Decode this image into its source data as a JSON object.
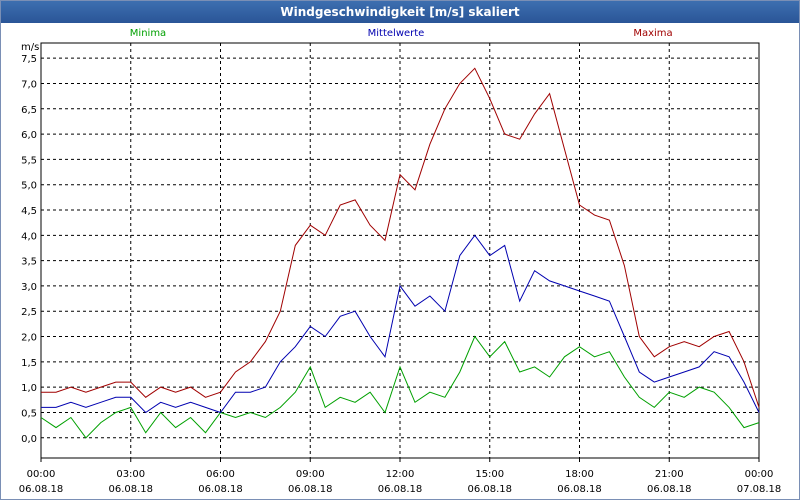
{
  "window": {
    "title": "Windgeschwindigkeit [m/s] skaliert"
  },
  "colors": {
    "min": "#00a000",
    "mean": "#0000b0",
    "max": "#a00000",
    "grid": "#000000"
  },
  "chart_data": {
    "type": "line",
    "title": "Windgeschwindigkeit [m/s] skaliert",
    "ylabel": "m/s",
    "ylim": [
      -0.4,
      7.8
    ],
    "yticks": [
      0.0,
      0.5,
      1.0,
      1.5,
      2.0,
      2.5,
      3.0,
      3.5,
      4.0,
      4.5,
      5.0,
      5.5,
      6.0,
      6.5,
      7.0,
      7.5
    ],
    "ytick_labels": [
      "0,0",
      "0,5",
      "1,0",
      "1,5",
      "2,0",
      "2,5",
      "3,0",
      "3,5",
      "4,0",
      "4,5",
      "5,0",
      "5,5",
      "6,0",
      "6,5",
      "7,0",
      "7,5"
    ],
    "xlim": [
      "06.08.18 00:00",
      "07.08.18 00:00"
    ],
    "xtick_labels": [
      {
        "time": "00:00",
        "date": "06.08.18"
      },
      {
        "time": "03:00",
        "date": "06.08.18"
      },
      {
        "time": "06:00",
        "date": "06.08.18"
      },
      {
        "time": "09:00",
        "date": "06.08.18"
      },
      {
        "time": "12:00",
        "date": "06.08.18"
      },
      {
        "time": "15:00",
        "date": "06.08.18"
      },
      {
        "time": "18:00",
        "date": "06.08.18"
      },
      {
        "time": "21:00",
        "date": "06.08.18"
      },
      {
        "time": "00:00",
        "date": "07.08.18"
      }
    ],
    "grid": true,
    "x": [
      "06.08.18 00:00",
      "06.08.18 00:30",
      "06.08.18 01:00",
      "06.08.18 01:30",
      "06.08.18 02:00",
      "06.08.18 02:30",
      "06.08.18 03:00",
      "06.08.18 03:30",
      "06.08.18 04:00",
      "06.08.18 04:30",
      "06.08.18 05:00",
      "06.08.18 05:30",
      "06.08.18 06:00",
      "06.08.18 06:30",
      "06.08.18 07:00",
      "06.08.18 07:30",
      "06.08.18 08:00",
      "06.08.18 08:30",
      "06.08.18 09:00",
      "06.08.18 09:30",
      "06.08.18 10:00",
      "06.08.18 10:30",
      "06.08.18 11:00",
      "06.08.18 11:30",
      "06.08.18 12:00",
      "06.08.18 12:30",
      "06.08.18 13:00",
      "06.08.18 13:30",
      "06.08.18 14:00",
      "06.08.18 14:30",
      "06.08.18 15:00",
      "06.08.18 15:30",
      "06.08.18 16:00",
      "06.08.18 16:30",
      "06.08.18 17:00",
      "06.08.18 17:30",
      "06.08.18 18:00",
      "06.08.18 18:30",
      "06.08.18 19:00",
      "06.08.18 19:30",
      "06.08.18 20:00",
      "06.08.18 20:30",
      "06.08.18 21:00",
      "06.08.18 21:30",
      "06.08.18 22:00",
      "06.08.18 22:30",
      "06.08.18 23:00",
      "06.08.18 23:30",
      "07.08.18 00:00"
    ],
    "series": [
      {
        "name": "Minima",
        "key": "min",
        "values": [
          0.4,
          0.2,
          0.4,
          0.0,
          0.3,
          0.5,
          0.6,
          0.1,
          0.5,
          0.2,
          0.4,
          0.1,
          0.5,
          0.4,
          0.5,
          0.4,
          0.6,
          0.9,
          1.4,
          0.6,
          0.8,
          0.7,
          0.9,
          0.5,
          1.4,
          0.7,
          0.9,
          0.8,
          1.3,
          2.0,
          1.6,
          1.9,
          1.3,
          1.4,
          1.2,
          1.6,
          1.8,
          1.6,
          1.7,
          1.2,
          0.8,
          0.6,
          0.9,
          0.8,
          1.0,
          0.9,
          0.6,
          0.2,
          0.3
        ]
      },
      {
        "name": "Mittelwerte",
        "key": "mean",
        "values": [
          0.6,
          0.6,
          0.7,
          0.6,
          0.7,
          0.8,
          0.8,
          0.5,
          0.7,
          0.6,
          0.7,
          0.6,
          0.5,
          0.9,
          0.9,
          1.0,
          1.5,
          1.8,
          2.2,
          2.0,
          2.4,
          2.5,
          2.0,
          1.6,
          3.0,
          2.6,
          2.8,
          2.5,
          3.6,
          4.0,
          3.6,
          3.8,
          2.7,
          3.3,
          3.1,
          3.0,
          2.9,
          2.8,
          2.7,
          2.0,
          1.3,
          1.1,
          1.2,
          1.3,
          1.4,
          1.7,
          1.6,
          1.1,
          0.5
        ]
      },
      {
        "name": "Maxima",
        "key": "max",
        "values": [
          0.9,
          0.9,
          1.0,
          0.9,
          1.0,
          1.1,
          1.1,
          0.8,
          1.0,
          0.9,
          1.0,
          0.8,
          0.9,
          1.3,
          1.5,
          1.9,
          2.5,
          3.8,
          4.2,
          4.0,
          4.6,
          4.7,
          4.2,
          3.9,
          5.2,
          4.9,
          5.8,
          6.5,
          7.0,
          7.3,
          6.7,
          6.0,
          5.9,
          6.4,
          6.8,
          5.7,
          4.6,
          4.4,
          4.3,
          3.4,
          2.0,
          1.6,
          1.8,
          1.9,
          1.8,
          2.0,
          2.1,
          1.5,
          0.6
        ]
      }
    ],
    "legend": "top, above plot"
  }
}
